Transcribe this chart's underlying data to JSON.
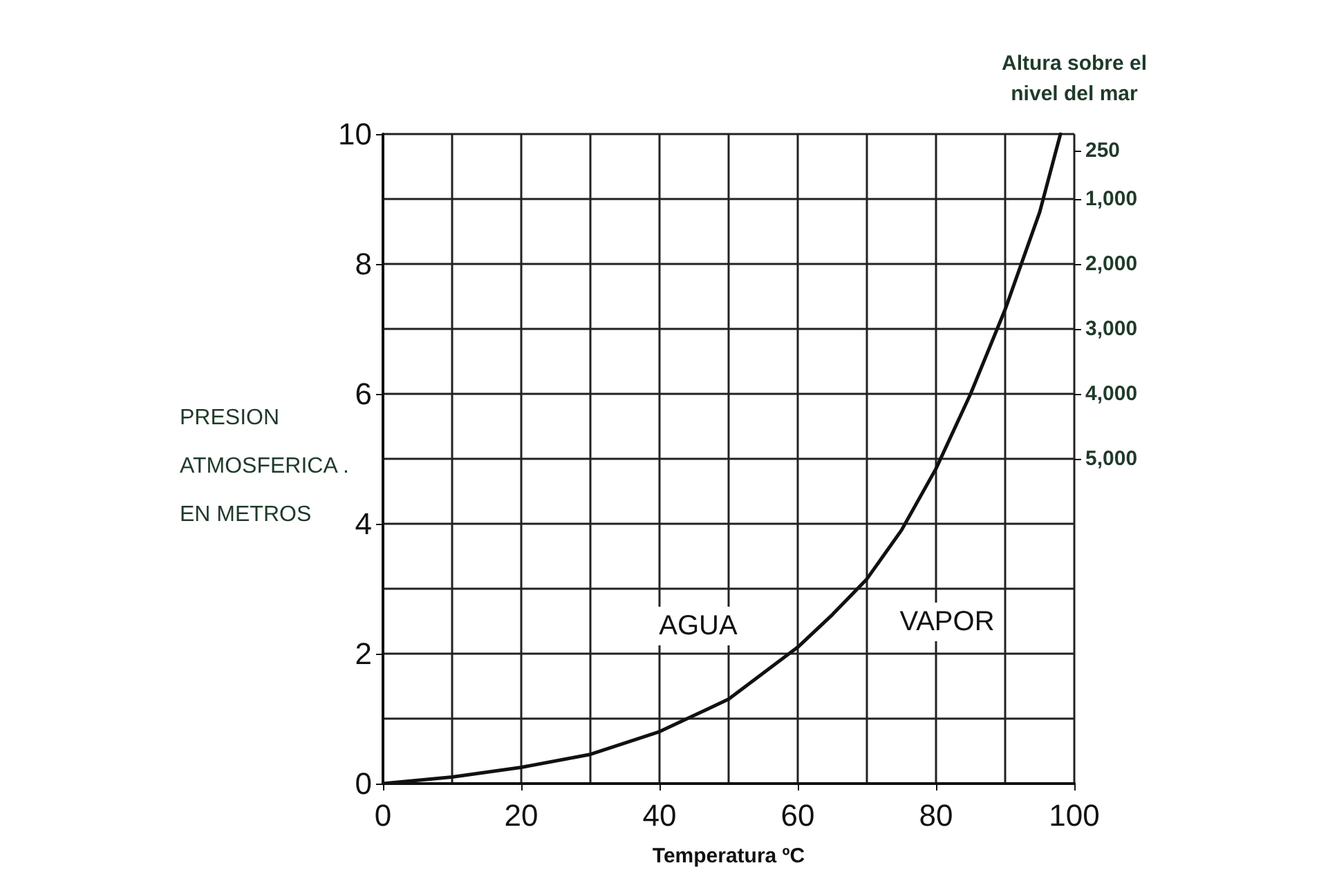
{
  "chart_data": {
    "type": "line",
    "xlabel": "Temperatura ºC",
    "ylabel": "PRESION\nATMOSFERICA .\nEN METROS",
    "y2label": "Altura sobre el\nnivel del mar",
    "x": [
      0,
      10,
      20,
      30,
      40,
      50,
      60,
      65,
      70,
      75,
      80,
      85,
      90,
      95,
      98
    ],
    "series": [
      {
        "color": "#111111",
        "values": [
          0,
          0.1,
          0.25,
          0.45,
          0.8,
          1.3,
          2.1,
          2.6,
          3.15,
          3.9,
          4.85,
          6.0,
          7.3,
          8.8,
          10
        ]
      }
    ],
    "xlim": [
      0,
      100
    ],
    "xticks": [
      0,
      20,
      40,
      60,
      80,
      100
    ],
    "ylim": [
      0,
      10
    ],
    "yticks": [
      0,
      2,
      4,
      6,
      8,
      10
    ],
    "y2lim": [
      10000,
      0
    ],
    "y2ticks": [
      250,
      {
        "value": 1000,
        "label": "1,000"
      },
      {
        "value": 2000,
        "label": "2,000"
      },
      {
        "value": 3000,
        "label": "3,000"
      },
      {
        "value": 4000,
        "label": "4,000"
      },
      {
        "value": 5000,
        "label": "5,000"
      }
    ],
    "grid": true,
    "marker": "none",
    "line_style": "solid",
    "annotations": [
      "AGUA",
      "VAPOR"
    ]
  }
}
